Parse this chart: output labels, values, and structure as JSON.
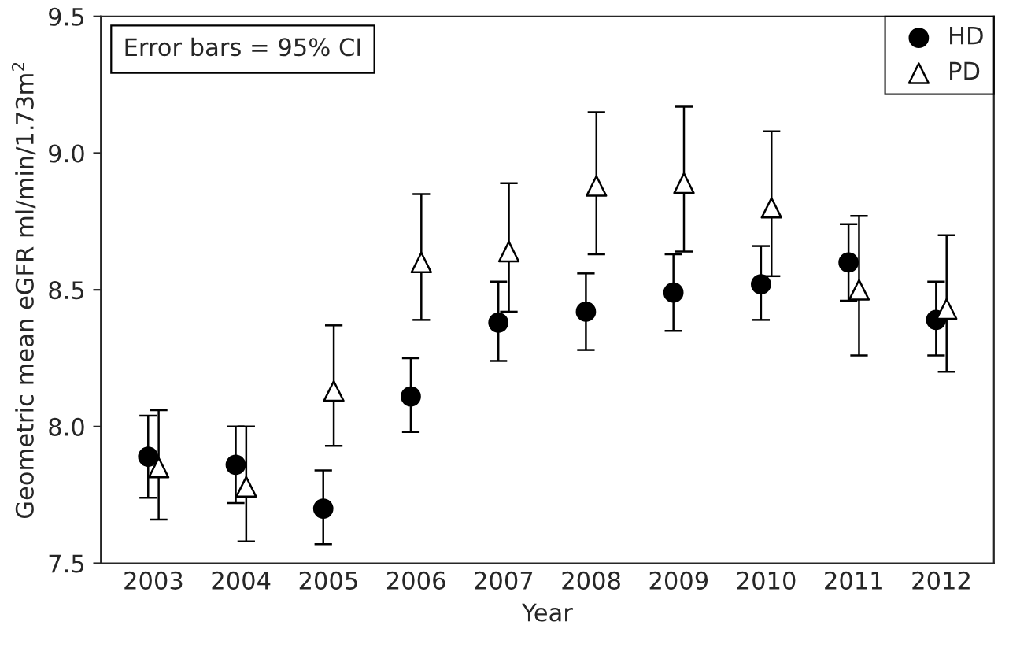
{
  "chart_data": {
    "type": "scatter",
    "xlabel": "Year",
    "ylabel": "Geometric mean eGFR ml/min/1.73m$^{2}$",
    "categories": [
      "2003",
      "2004",
      "2005",
      "2006",
      "2007",
      "2008",
      "2009",
      "2010",
      "2011",
      "2012"
    ],
    "series": [
      {
        "name": "HD",
        "color": "#000000",
        "marker": "circle",
        "values": [
          7.89,
          7.86,
          7.7,
          8.11,
          8.38,
          8.42,
          8.49,
          8.52,
          8.6,
          8.39
        ],
        "errors": [
          [
            7.74,
            8.04
          ],
          [
            7.72,
            8.0
          ],
          [
            7.57,
            7.84
          ],
          [
            7.98,
            8.25
          ],
          [
            8.24,
            8.53
          ],
          [
            8.28,
            8.56
          ],
          [
            8.35,
            8.63
          ],
          [
            8.39,
            8.66
          ],
          [
            8.46,
            8.74
          ],
          [
            8.26,
            8.53
          ]
        ]
      },
      {
        "name": "PD",
        "color": "#000000",
        "marker": "triangle",
        "values": [
          7.85,
          7.78,
          8.13,
          8.6,
          8.64,
          8.88,
          8.89,
          8.8,
          8.5,
          8.43
        ],
        "errors": [
          [
            7.66,
            8.06
          ],
          [
            7.58,
            8.0
          ],
          [
            7.93,
            8.37
          ],
          [
            8.39,
            8.85
          ],
          [
            8.42,
            8.89
          ],
          [
            8.63,
            9.15
          ],
          [
            8.64,
            9.17
          ],
          [
            8.55,
            9.08
          ],
          [
            8.26,
            8.77
          ],
          [
            8.2,
            8.7
          ]
        ]
      }
    ],
    "ylim": [
      7.5,
      9.5
    ],
    "yticks": [
      7.5,
      {
        "value": 8,
        "label": "8.0"
      },
      8.5,
      {
        "value": 9,
        "label": "9.0"
      },
      9.5
    ],
    "annotations": [
      "Error bars = 95% CI"
    ],
    "legend": "top right",
    "grid": false
  }
}
